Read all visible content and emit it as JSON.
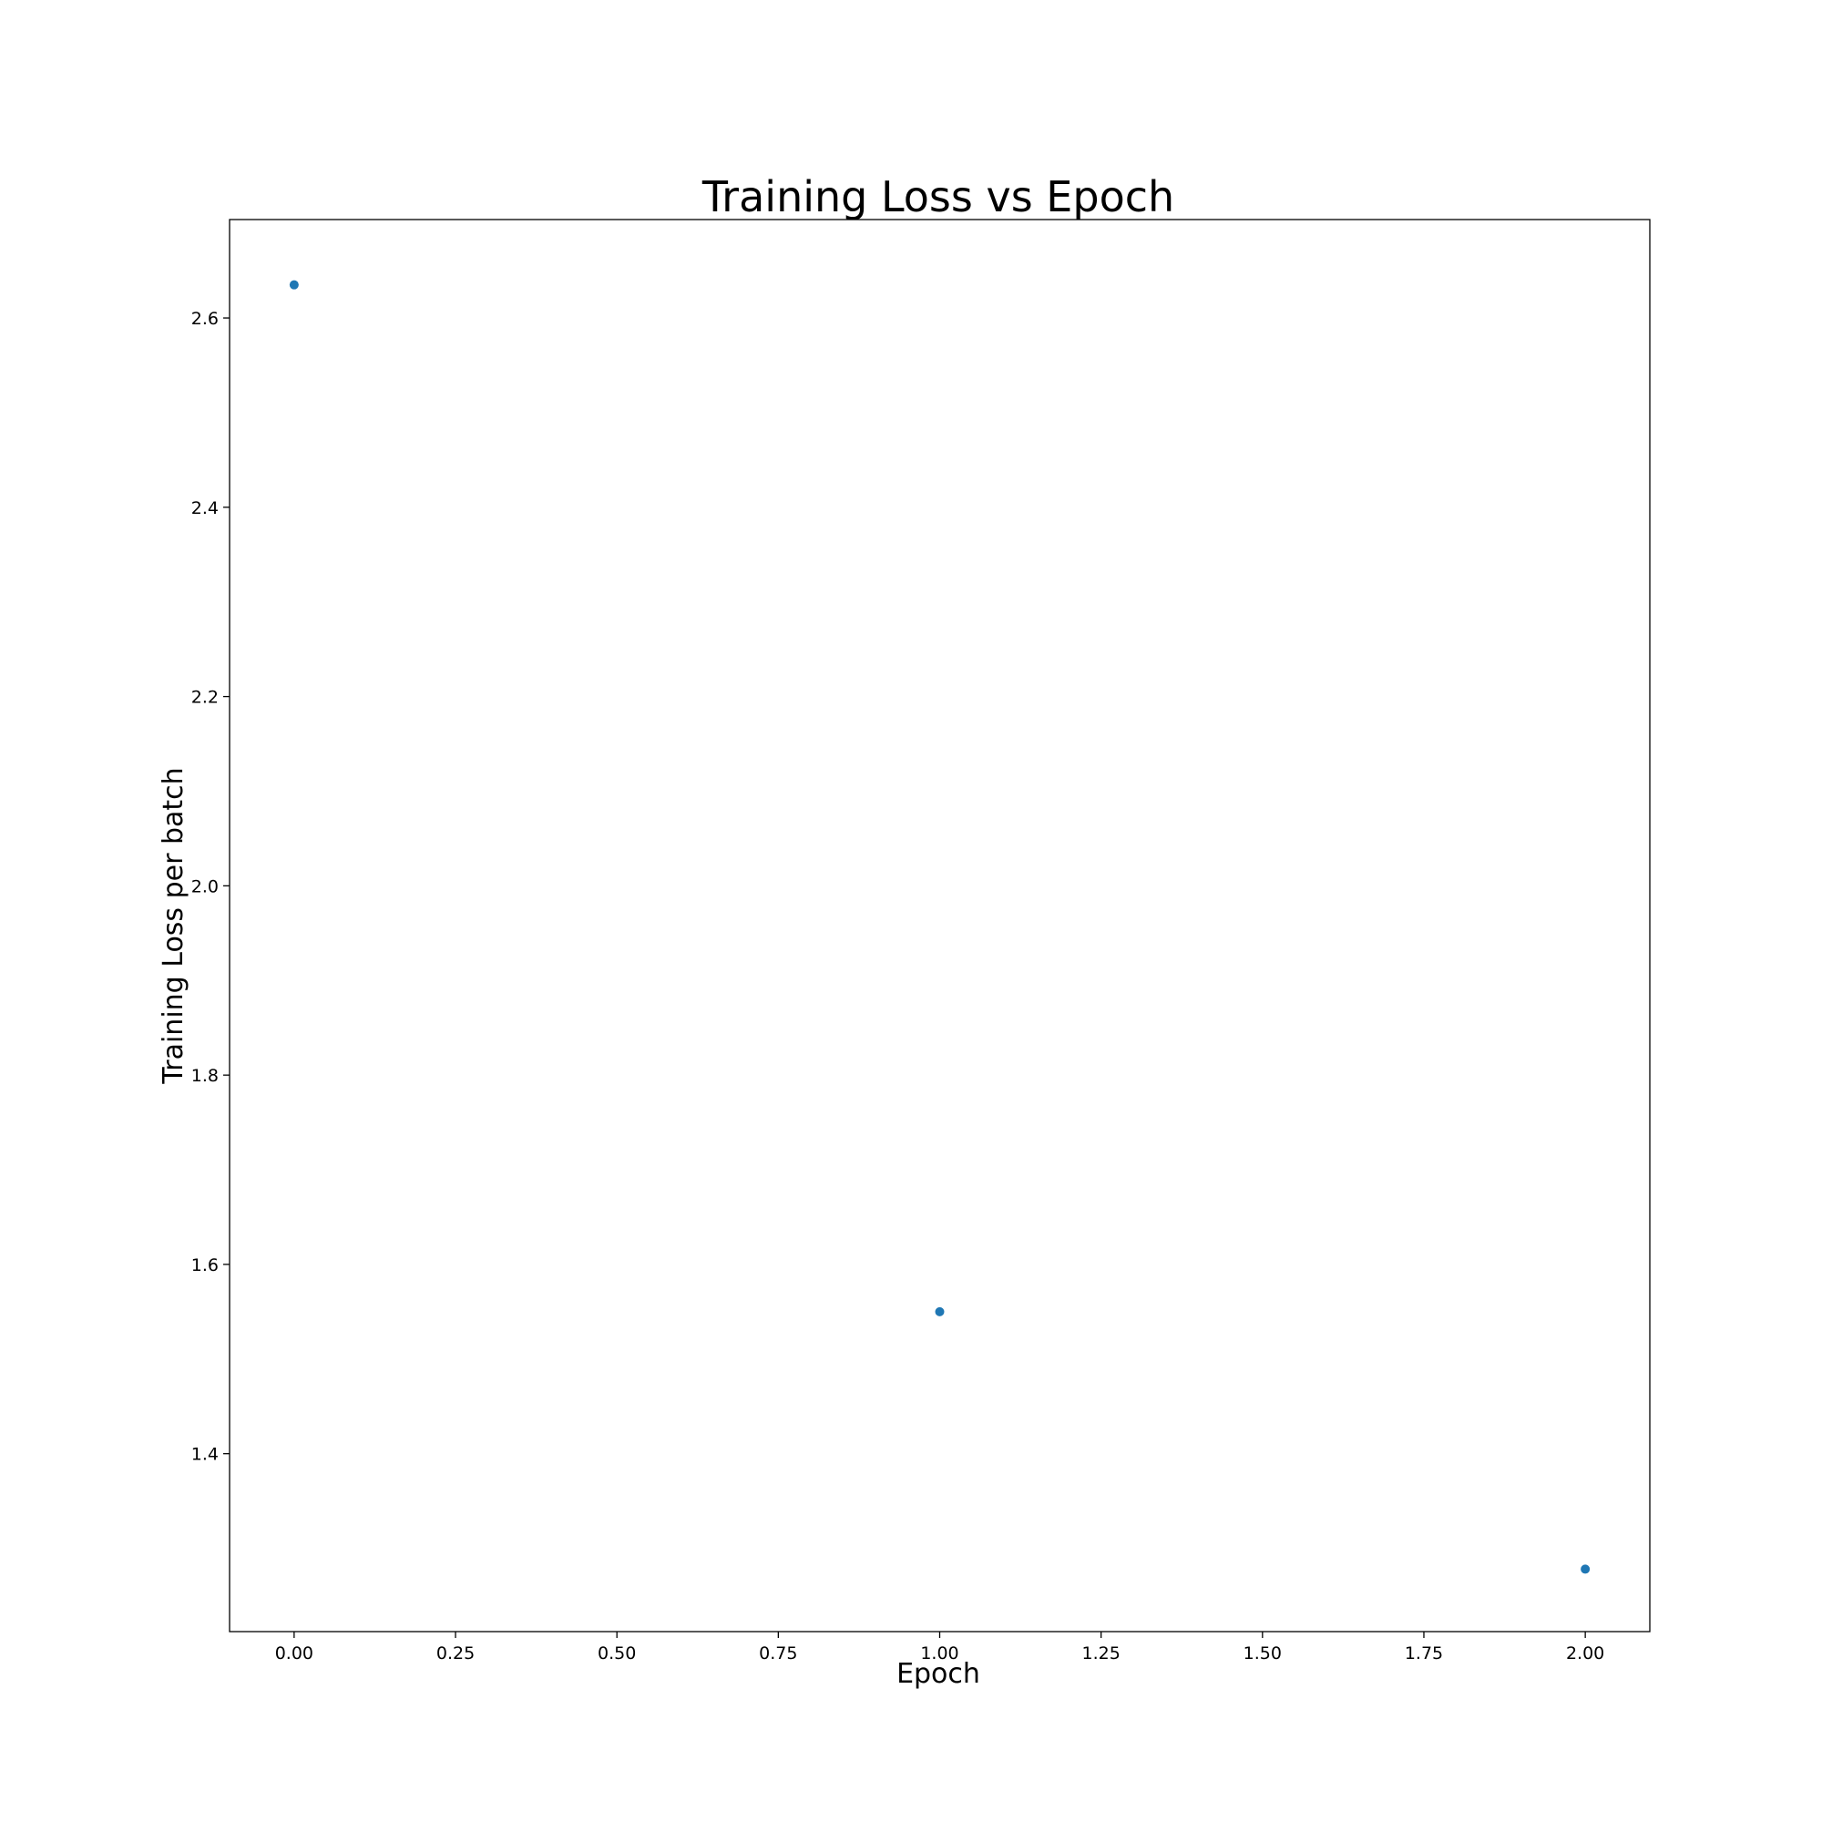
{
  "chart_data": {
    "type": "scatter",
    "title": "Training Loss vs Epoch",
    "xlabel": "Epoch",
    "ylabel": "Training Loss per batch",
    "x": [
      0.0,
      1.0,
      2.0
    ],
    "y": [
      2.635,
      1.55,
      1.278
    ],
    "xlim": [
      -0.1,
      2.1
    ],
    "ylim": [
      1.212,
      2.704
    ],
    "xticks": [
      0.0,
      0.25,
      0.5,
      0.75,
      1.0,
      1.25,
      1.5,
      1.75,
      2.0
    ],
    "xtick_labels": [
      "0.00",
      "0.25",
      "0.50",
      "0.75",
      "1.00",
      "1.25",
      "1.50",
      "1.75",
      "2.00"
    ],
    "yticks": [
      1.4,
      1.6,
      1.8,
      2.0,
      2.2,
      2.4,
      2.6
    ],
    "ytick_labels": [
      "1.4",
      "1.6",
      "1.8",
      "2.0",
      "2.2",
      "2.4",
      "2.6"
    ],
    "grid": false,
    "marker_color": "#1f77b4"
  }
}
